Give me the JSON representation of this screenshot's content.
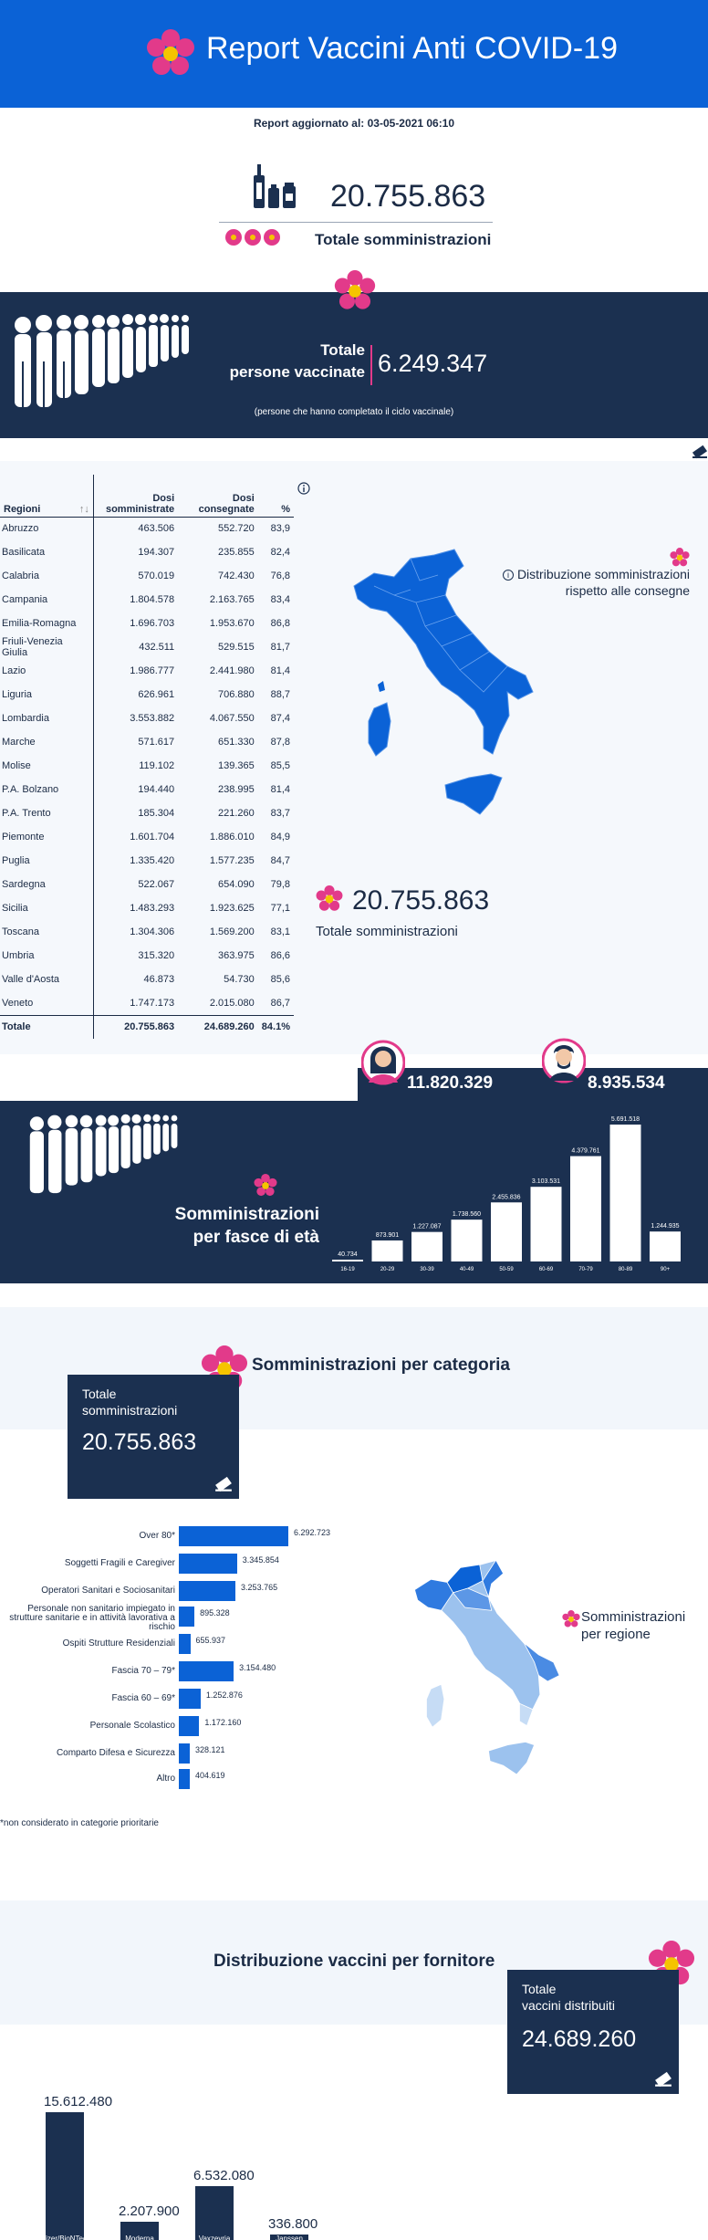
{
  "header": {
    "title": "Report Vaccini Anti COVID-19",
    "logo_icon": "flower-icon"
  },
  "updated": "Report aggiornato al: 03-05-2021 06:10",
  "total": {
    "value": "20.755.863",
    "label": "Totale somministrazioni"
  },
  "people_vaccinated": {
    "label_line1": "Totale",
    "label_line2": "persone vaccinate",
    "value": "6.249.347",
    "note": "(persone che hanno completato il ciclo vaccinale)"
  },
  "regions": {
    "headers": {
      "region": "Regioni",
      "sort": "↑↓",
      "given_1": "Dosi",
      "given_2": "somministrate",
      "delivered_1": "Dosi",
      "delivered_2": "consegnate",
      "pct": "%"
    },
    "rows": [
      [
        "Abruzzo",
        "463.506",
        "552.720",
        "83,9"
      ],
      [
        "Basilicata",
        "194.307",
        "235.855",
        "82,4"
      ],
      [
        "Calabria",
        "570.019",
        "742.430",
        "76,8"
      ],
      [
        "Campania",
        "1.804.578",
        "2.163.765",
        "83,4"
      ],
      [
        "Emilia-Romagna",
        "1.696.703",
        "1.953.670",
        "86,8"
      ],
      [
        "Friuli-Venezia Giulia",
        "432.511",
        "529.515",
        "81,7"
      ],
      [
        "Lazio",
        "1.986.777",
        "2.441.980",
        "81,4"
      ],
      [
        "Liguria",
        "626.961",
        "706.880",
        "88,7"
      ],
      [
        "Lombardia",
        "3.553.882",
        "4.067.550",
        "87,4"
      ],
      [
        "Marche",
        "571.617",
        "651.330",
        "87,8"
      ],
      [
        "Molise",
        "119.102",
        "139.365",
        "85,5"
      ],
      [
        "P.A. Bolzano",
        "194.440",
        "238.995",
        "81,4"
      ],
      [
        "P.A. Trento",
        "185.304",
        "221.260",
        "83,7"
      ],
      [
        "Piemonte",
        "1.601.704",
        "1.886.010",
        "84,9"
      ],
      [
        "Puglia",
        "1.335.420",
        "1.577.235",
        "84,7"
      ],
      [
        "Sardegna",
        "522.067",
        "654.090",
        "79,8"
      ],
      [
        "Sicilia",
        "1.483.293",
        "1.923.625",
        "77,1"
      ],
      [
        "Toscana",
        "1.304.306",
        "1.569.200",
        "83,1"
      ],
      [
        "Umbria",
        "315.320",
        "363.975",
        "86,6"
      ],
      [
        "Valle d'Aosta",
        "46.873",
        "54.730",
        "85,6"
      ],
      [
        "Veneto",
        "1.747.173",
        "2.015.080",
        "86,7"
      ]
    ],
    "total_row": [
      "Totale",
      "20.755.863",
      "24.689.260",
      "84.1%"
    ],
    "map_caption_1": "Distribuzione somministrazioni",
    "map_caption_2": "rispetto alle consegne",
    "total_value": "20.755.863",
    "total_label": "Totale somministrazioni"
  },
  "gender": {
    "female": "11.820.329",
    "male": "8.935.534"
  },
  "age": {
    "title_1": "Somministrazioni",
    "title_2": "per fasce di età",
    "chart_data": {
      "type": "bar",
      "categories": [
        "16-19",
        "20-29",
        "30-39",
        "40-49",
        "50-59",
        "60-69",
        "70-79",
        "80-89",
        "90+"
      ],
      "values": [
        40734,
        873901,
        1227087,
        1738560,
        2455836,
        3103531,
        4379761,
        5691518,
        1244935
      ],
      "value_labels": [
        "40.734",
        "873.901",
        "1.227.087",
        "1.738.560",
        "2.455.836",
        "3.103.531",
        "4.379.761",
        "5.691.518",
        "1.244.935"
      ]
    }
  },
  "categories": {
    "title": "Somministrazioni per categoria",
    "box_label_1": "Totale",
    "box_label_2": "somministrazioni",
    "box_value": "20.755.863",
    "chart_data": {
      "type": "bar",
      "orientation": "horizontal",
      "categories": [
        "Over 80*",
        "Soggetti Fragili e Caregiver",
        "Operatori Sanitari e Sociosanitari",
        "Personale non sanitario impiegato in strutture sanitarie e in attività lavorativa a rischio",
        "Ospiti Strutture Residenziali",
        "Fascia 70 – 79*",
        "Fascia 60 – 69*",
        "Personale Scolastico",
        "Comparto Difesa e Sicurezza",
        "Altro"
      ],
      "values": [
        6292723,
        3345854,
        3253765,
        895328,
        655937,
        3154480,
        1252876,
        1172160,
        328121,
        404619
      ],
      "value_labels": [
        "6.292.723",
        "3.345.854",
        "3.253.765",
        "895.328",
        "655.937",
        "3.154.480",
        "1.252.876",
        "1.172.160",
        "328.121",
        "404.619"
      ]
    },
    "note": "*non considerato in categorie prioritarie",
    "region_caption_1": "Somministrazioni",
    "region_caption_2": "per regione"
  },
  "suppliers": {
    "title": "Distribuzione vaccini per fornitore",
    "box_label_1": "Totale",
    "box_label_2": "vaccini distribuiti",
    "box_value": "24.689.260",
    "chart_data": {
      "type": "bar",
      "categories": [
        "Pfizer/BioNTech",
        "Moderna",
        "Vaxzevria (AstraZeneca)",
        "Janssen"
      ],
      "values": [
        15612480,
        2207900,
        6532080,
        336800
      ],
      "value_labels": [
        "15.612.480",
        "2.207.900",
        "6.532.080",
        "336.800"
      ]
    }
  },
  "colors": {
    "header_blue": "#0b62d6",
    "navy": "#1b3050",
    "accent_pink": "#e23a8a",
    "flower_yellow": "#f5c400"
  }
}
